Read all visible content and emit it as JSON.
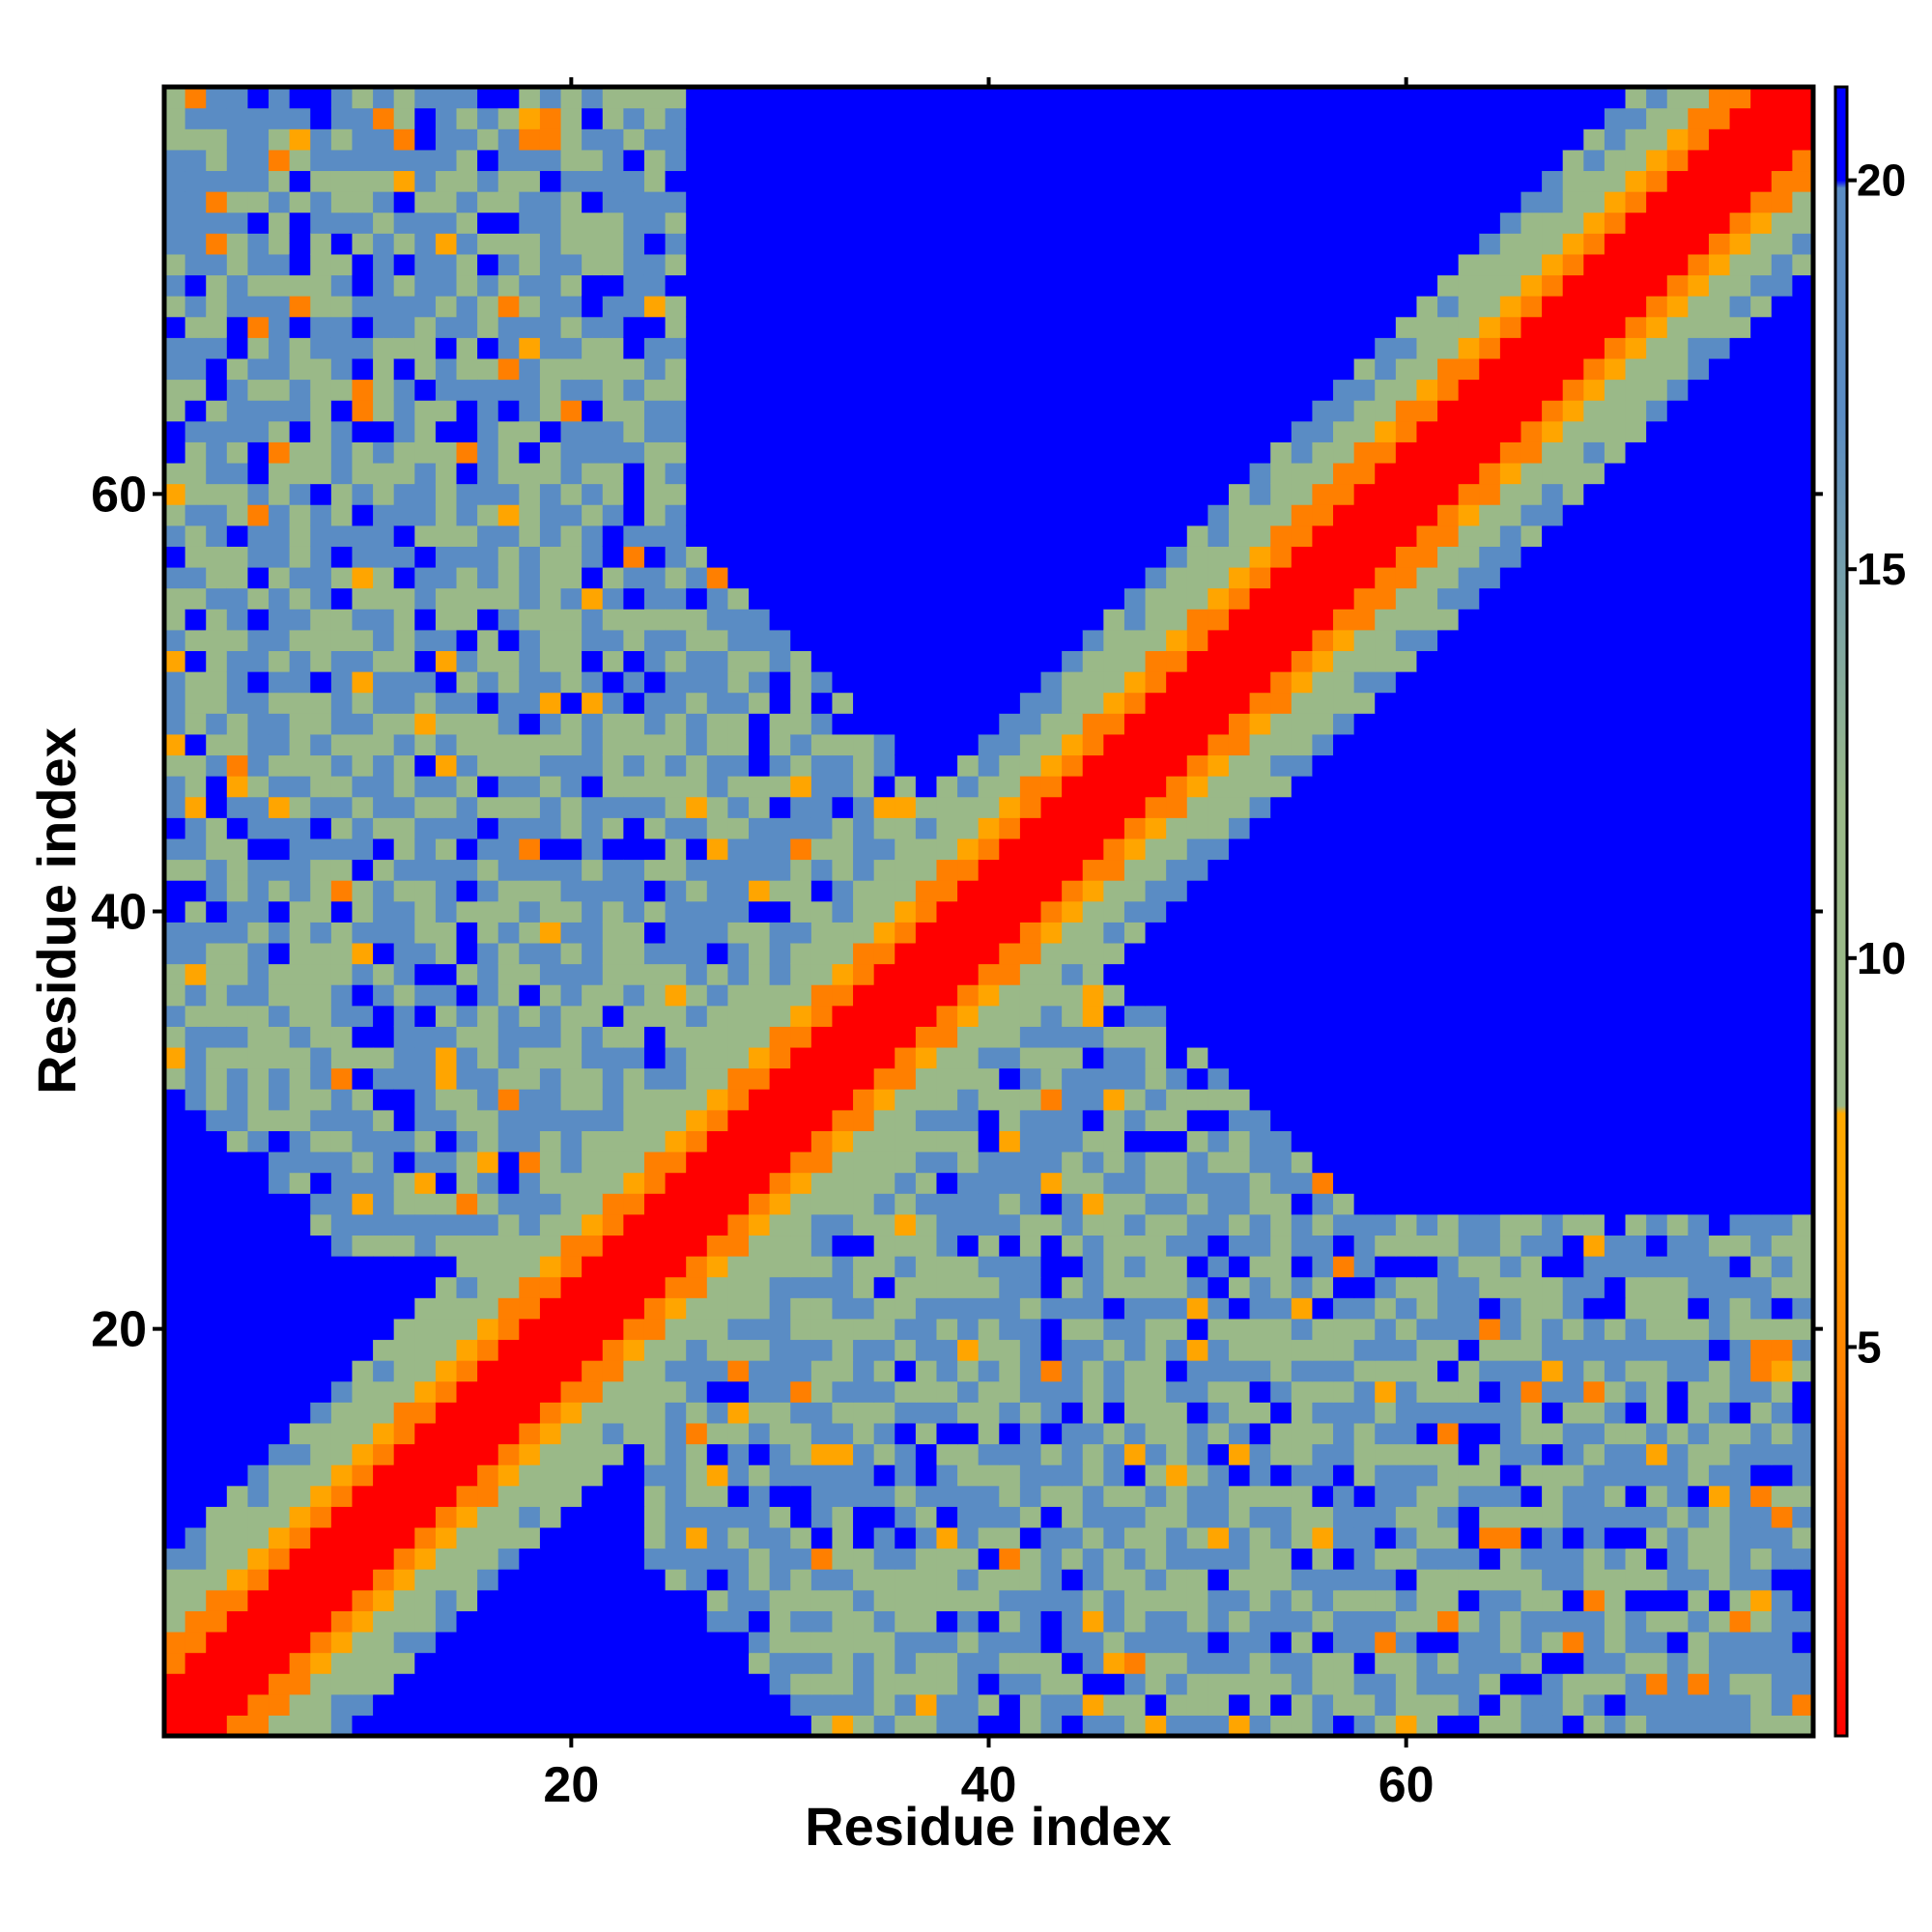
{
  "chart_data": {
    "type": "heatmap",
    "title": "",
    "xlabel": "Residue index",
    "ylabel": "Residue index",
    "n": 79,
    "xlim": [
      0.5,
      79.5
    ],
    "ylim": [
      0.5,
      79.5
    ],
    "x_ticks": [
      20,
      40,
      60
    ],
    "y_ticks": [
      20,
      40,
      60
    ],
    "colorbar": {
      "range": [
        0,
        21.2
      ],
      "ticks": [
        5,
        10,
        15,
        20
      ],
      "stops": [
        {
          "v": 0,
          "color": "#ff0000"
        },
        {
          "v": 4.5,
          "color": "#ff7f00"
        },
        {
          "v": 7,
          "color": "#ffa500"
        },
        {
          "v": 8,
          "color": "#ffaa00"
        },
        {
          "v": 8.1,
          "color": "#9ab988"
        },
        {
          "v": 12,
          "color": "#9ab988"
        },
        {
          "v": 17,
          "color": "#5a8cc4"
        },
        {
          "v": 19.9,
          "color": "#5a8cc4"
        },
        {
          "v": 20,
          "color": "#0000ff"
        },
        {
          "v": 21.2,
          "color": "#0000ff"
        }
      ]
    },
    "colors": {
      "contact": "#ff0000",
      "near": "#ff7f00",
      "close": "#ffa500",
      "mid": "#9ab988",
      "far": "#5a8cc4",
      "none": "#0000ff"
    },
    "description_of_values": "symmetric residue-residue distance map (Angstrom); main diagonal band red, orange flanks, green/grey-blue shells, saturated blue beyond 20; anti-diagonal cross-band of intermediate distances"
  }
}
